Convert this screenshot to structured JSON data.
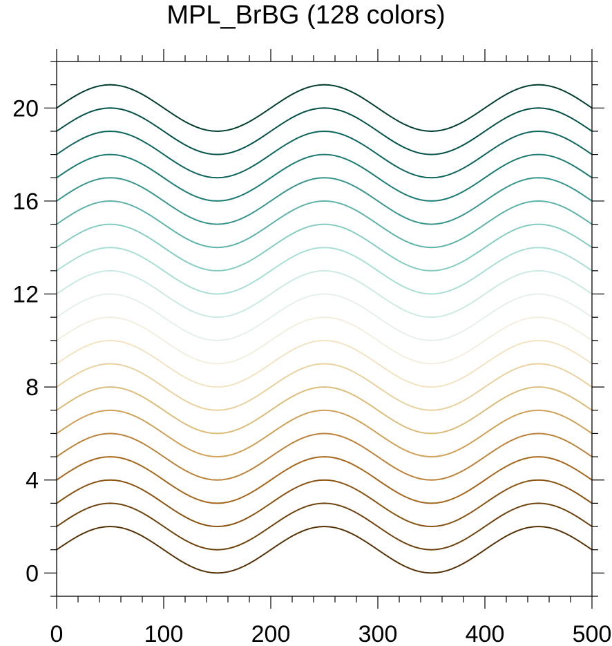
{
  "chart_data": {
    "type": "line",
    "title": "MPL_BrBG (128 colors)",
    "xlabel": "",
    "ylabel": "",
    "xlim": [
      0,
      500
    ],
    "ylim": [
      -1,
      22
    ],
    "x_ticks": [
      0,
      100,
      200,
      300,
      400,
      500
    ],
    "x_tick_labels": [
      "0",
      "100",
      "200",
      "300",
      "400",
      "500"
    ],
    "y_ticks": [
      0,
      4,
      8,
      12,
      16,
      20
    ],
    "y_tick_labels": [
      "0",
      "4",
      "8",
      "12",
      "16",
      "20"
    ],
    "x_minor_step": 20,
    "y_minor_step": 1,
    "grid": false,
    "legend": "none",
    "series_function": "y = offset + 1 + sin(2*pi*x/200)",
    "x_sample_step": 5,
    "series": [
      {
        "offset": 0,
        "color": "#543005"
      },
      {
        "offset": 1,
        "color": "#6f420b"
      },
      {
        "offset": 2,
        "color": "#8a5310"
      },
      {
        "offset": 3,
        "color": "#a6661c"
      },
      {
        "offset": 4,
        "color": "#bd8239"
      },
      {
        "offset": 5,
        "color": "#cfa055"
      },
      {
        "offset": 6,
        "color": "#dcbc79"
      },
      {
        "offset": 7,
        "color": "#e9d29f"
      },
      {
        "offset": 8,
        "color": "#f3e3c2"
      },
      {
        "offset": 9,
        "color": "#f4eee0"
      },
      {
        "offset": 10,
        "color": "#e5f0ee"
      },
      {
        "offset": 11,
        "color": "#cceae5"
      },
      {
        "offset": 12,
        "color": "#aadfd6"
      },
      {
        "offset": 13,
        "color": "#85cdc1"
      },
      {
        "offset": 14,
        "color": "#5db3a8"
      },
      {
        "offset": 15,
        "color": "#38968d"
      },
      {
        "offset": 16,
        "color": "#1b7c73"
      },
      {
        "offset": 17,
        "color": "#0d665c"
      },
      {
        "offset": 18,
        "color": "#015146"
      },
      {
        "offset": 19,
        "color": "#003c30"
      }
    ]
  }
}
